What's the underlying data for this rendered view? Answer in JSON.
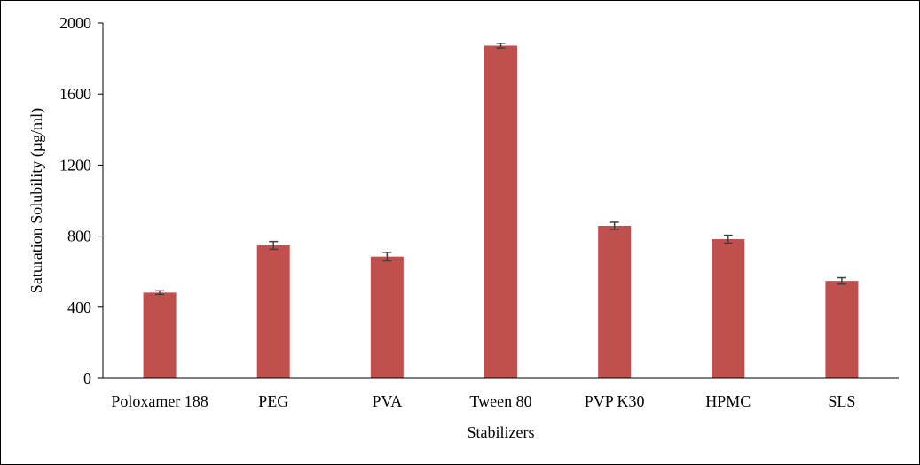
{
  "chart_data": {
    "type": "bar",
    "title": "",
    "xlabel": "Stabilizers",
    "ylabel": "Saturation Solubility (µg/ml)",
    "categories": [
      "Poloxamer 188",
      "PEG",
      "PVA",
      "Tween 80",
      "PVP K30",
      "HPMC",
      "SLS"
    ],
    "values": [
      482,
      748,
      685,
      1873,
      858,
      783,
      548
    ],
    "errors": [
      10,
      22,
      24,
      13,
      20,
      22,
      18
    ],
    "ylim": [
      0,
      2000
    ],
    "yticks": [
      0,
      400,
      800,
      1200,
      1600,
      2000
    ],
    "grid": false,
    "legend": "none",
    "bar_color": "#c0504d",
    "error_color": "#404040"
  }
}
